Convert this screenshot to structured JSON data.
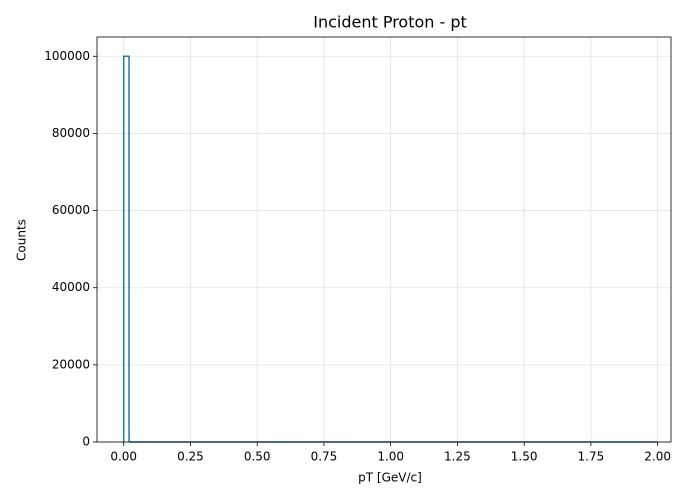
{
  "chart_data": {
    "type": "histogram",
    "title": "Incident Proton - pt",
    "x_label": "pT [GeV/c]",
    "y_label": "Counts",
    "color": "#1f77b4",
    "grid": true,
    "bins": [
      0,
      0.02,
      0.04,
      0.06,
      0.08,
      0.1,
      0.12,
      0.14,
      0.16,
      0.18,
      0.2,
      0.22,
      0.24,
      0.26,
      0.28,
      0.3,
      0.32,
      0.34,
      0.36,
      0.38,
      0.4,
      0.42,
      0.44,
      0.46,
      0.48,
      0.5,
      0.52,
      0.54,
      0.56,
      0.58,
      0.6,
      0.62,
      0.64,
      0.66,
      0.68,
      0.7,
      0.72,
      0.74,
      0.76,
      0.78,
      0.8,
      0.82,
      0.84,
      0.86,
      0.88,
      0.9,
      0.92,
      0.94,
      0.96,
      0.98,
      1,
      1.02,
      1.04,
      1.06,
      1.08,
      1.1,
      1.12,
      1.14,
      1.16,
      1.18,
      1.2,
      1.22,
      1.24,
      1.26,
      1.28,
      1.3,
      1.32,
      1.34,
      1.36,
      1.38,
      1.4,
      1.42,
      1.44,
      1.46,
      1.48,
      1.5,
      1.52,
      1.54,
      1.56,
      1.58,
      1.6,
      1.62,
      1.64,
      1.66,
      1.68,
      1.7,
      1.72,
      1.74,
      1.76,
      1.78,
      1.8,
      1.82,
      1.84,
      1.86,
      1.88,
      1.9,
      1.92,
      1.94,
      1.96,
      1.98,
      2
    ],
    "values": [
      100000,
      0,
      0,
      0,
      0,
      0,
      0,
      0,
      0,
      0,
      0,
      0,
      0,
      0,
      0,
      0,
      0,
      0,
      0,
      0,
      0,
      0,
      0,
      0,
      0,
      0,
      0,
      0,
      0,
      0,
      0,
      0,
      0,
      0,
      0,
      0,
      0,
      0,
      0,
      0,
      0,
      0,
      0,
      0,
      0,
      0,
      0,
      0,
      0,
      0,
      0,
      0,
      0,
      0,
      0,
      0,
      0,
      0,
      0,
      0,
      0,
      0,
      0,
      0,
      0,
      0,
      0,
      0,
      0,
      0,
      0,
      0,
      0,
      0,
      0,
      0,
      0,
      0,
      0,
      0,
      0,
      0,
      0,
      0,
      0,
      0,
      0,
      0,
      0,
      0,
      0,
      0,
      0,
      0,
      0,
      0,
      0,
      0,
      0,
      0
    ],
    "xlim": [
      -0.1,
      2.05
    ],
    "ylim": [
      0,
      105000
    ],
    "xticks": [
      {
        "value": 0,
        "label": "0.00"
      },
      {
        "value": 0.25,
        "label": "0.25"
      },
      {
        "value": 0.5,
        "label": "0.50"
      },
      {
        "value": 0.75,
        "label": "0.75"
      },
      {
        "value": 1,
        "label": "1.00"
      },
      {
        "value": 1.25,
        "label": "1.25"
      },
      {
        "value": 1.5,
        "label": "1.50"
      },
      {
        "value": 1.75,
        "label": "1.75"
      },
      {
        "value": 2,
        "label": "2.00"
      }
    ],
    "yticks": [
      0,
      20000,
      40000,
      60000,
      80000,
      100000
    ]
  }
}
